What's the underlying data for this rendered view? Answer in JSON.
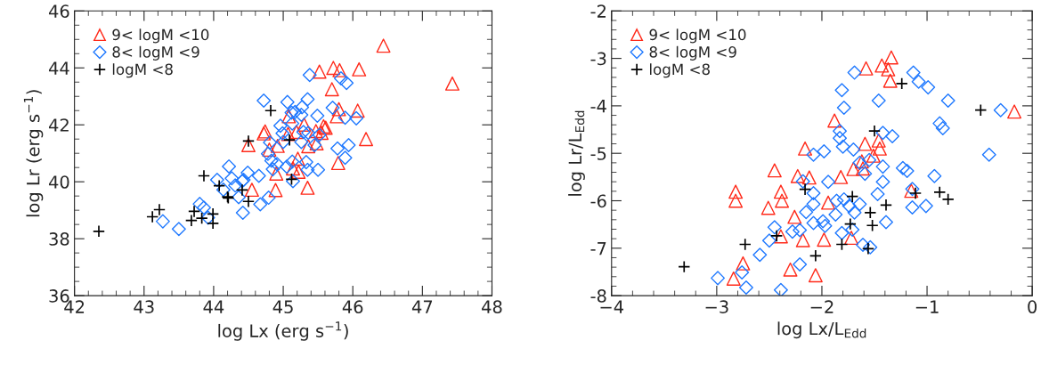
{
  "chart_data": [
    {
      "type": "scatter",
      "xlabel": "log Lx (erg s$^{−1}$)",
      "ylabel": "log Lr (erg s$^{−1}$)",
      "xlim": [
        42,
        48
      ],
      "ylim": [
        36,
        46
      ],
      "xticks": [
        42,
        43,
        44,
        45,
        46,
        47,
        48
      ],
      "yticks": [
        36,
        38,
        40,
        42,
        44,
        46
      ],
      "grid": false,
      "legend": "top left",
      "series": [
        {
          "name": "9< logM <10",
          "color": "#ff2a1a",
          "marker": "triangle",
          "x": [
            44.5,
            44.55,
            44.72,
            44.74,
            44.8,
            44.92,
            44.9,
            44.89,
            45.08,
            45.07,
            45.52,
            45.72,
            45.81,
            46.09,
            46.44,
            47.43,
            45.7,
            45.8,
            45.77,
            46.07,
            45.3,
            45.19,
            45.47,
            45.58,
            45.61,
            45.55,
            45.36,
            45.48,
            46.19,
            45.21,
            45.14,
            45.22,
            45.79,
            45.35
          ],
          "values": [
            41.29,
            39.72,
            41.7,
            41.77,
            41.13,
            41.26,
            40.29,
            39.71,
            42.3,
            41.68,
            43.87,
            44.0,
            43.92,
            43.95,
            44.78,
            43.45,
            43.25,
            42.55,
            42.3,
            42.5,
            42.01,
            41.75,
            41.78,
            41.95,
            41.9,
            41.72,
            41.25,
            41.35,
            41.5,
            40.81,
            40.47,
            40.35,
            40.66,
            39.79
          ]
        },
        {
          "name": "8< logM <9",
          "color": "#1e78ff",
          "marker": "diamond",
          "x": [
            43.27,
            43.5,
            43.8,
            43.86,
            43.92,
            44.05,
            44.14,
            44.22,
            44.26,
            44.31,
            44.36,
            44.41,
            44.43,
            44.42,
            44.49,
            44.65,
            44.67,
            44.79,
            44.72,
            44.78,
            44.81,
            44.83,
            44.91,
            44.85,
            44.96,
            45.0,
            44.99,
            45.06,
            45.12,
            45.05,
            45.14,
            45.38,
            45.83,
            45.91,
            45.35,
            45.27,
            45.17,
            45.26,
            45.49,
            45.71,
            45.89,
            46.05,
            45.13,
            45.29,
            45.36,
            45.52,
            45.26,
            45.45,
            45.78,
            45.94,
            45.89,
            45.13,
            45.33,
            45.35,
            45.5
          ],
          "values": [
            38.61,
            38.34,
            39.22,
            39.09,
            38.74,
            40.07,
            39.72,
            40.54,
            40.12,
            39.87,
            39.46,
            40.02,
            40.07,
            38.91,
            40.32,
            40.21,
            39.21,
            39.44,
            42.85,
            40.98,
            41.38,
            40.74,
            40.62,
            40.44,
            41.97,
            41.4,
            41.7,
            42.8,
            42.43,
            40.53,
            40.02,
            43.75,
            43.63,
            43.47,
            42.9,
            42.62,
            42.45,
            42.35,
            42.32,
            42.6,
            42.25,
            42.23,
            42.05,
            41.75,
            41.72,
            41.65,
            41.4,
            41.29,
            41.17,
            41.29,
            40.84,
            40.71,
            40.69,
            40.42,
            40.42
          ]
        },
        {
          "name": "logM <8",
          "color": "#000000",
          "marker": "cross",
          "x": [
            42.35,
            43.12,
            43.22,
            43.68,
            43.72,
            43.83,
            43.99,
            43.99,
            43.86,
            44.08,
            44.2,
            44.21,
            44.41,
            44.5,
            44.5,
            44.82,
            45.09,
            45.12
          ],
          "values": [
            38.26,
            38.77,
            39.02,
            38.64,
            38.96,
            38.72,
            38.87,
            38.54,
            40.21,
            39.86,
            39.47,
            39.43,
            39.71,
            39.31,
            41.43,
            42.5,
            41.47,
            40.09
          ]
        }
      ]
    },
    {
      "type": "scatter",
      "xlabel": "log Lx/L$_{Edd}$",
      "ylabel": "log Lr/L$_{Edd}$",
      "xlim": [
        -4,
        0
      ],
      "ylim": [
        -8,
        -2
      ],
      "xticks": [
        {
          "value": -4,
          "label": "−4"
        },
        {
          "value": -3,
          "label": "−3"
        },
        {
          "value": -2,
          "label": "−2"
        },
        {
          "value": -1,
          "label": "−1"
        },
        0
      ],
      "yticks": [
        -8,
        -7,
        -6,
        -5,
        -4,
        -3,
        -2
      ],
      "grid": false,
      "legend": "top left",
      "series": [
        {
          "name": "9< logM <10",
          "color": "#ff2a1a",
          "marker": "triangle",
          "x": [
            -2.82,
            -2.82,
            -2.75,
            -2.84,
            -2.45,
            -2.39,
            -2.38,
            -2.39,
            -2.51,
            -2.26,
            -2.18,
            -2.3,
            -2.23,
            -2.12,
            -2.16,
            -2.06,
            -1.58,
            -1.43,
            -1.37,
            -1.34,
            -1.35,
            -0.17,
            -1.88,
            -1.59,
            -1.46,
            -1.45,
            -1.51,
            -1.62,
            -1.7,
            -1.61,
            -1.82,
            -1.15,
            -1.94,
            -1.98,
            -1.72
          ],
          "values": [
            -5.81,
            -6.0,
            -7.32,
            -7.64,
            -5.36,
            -5.81,
            -6.0,
            -6.75,
            -6.15,
            -6.34,
            -6.83,
            -7.45,
            -5.48,
            -5.51,
            -4.9,
            -7.57,
            -3.21,
            -3.15,
            -3.23,
            -2.98,
            -3.47,
            -4.12,
            -4.31,
            -4.8,
            -4.73,
            -4.9,
            -5.05,
            -5.17,
            -5.33,
            -5.32,
            -5.5,
            -5.79,
            -6.04,
            -6.82,
            -6.78
          ]
        },
        {
          "name": "8< logM <9",
          "color": "#1e78ff",
          "marker": "diamond",
          "x": [
            -2.99,
            -2.76,
            -2.72,
            -2.59,
            -2.5,
            -2.45,
            -2.39,
            -2.28,
            -2.21,
            -2.21,
            -2.18,
            -2.15,
            -2.08,
            -2.08,
            -2.08,
            -2.08,
            -1.69,
            -1.81,
            -1.79,
            -1.46,
            -1.13,
            -1.08,
            -0.99,
            -0.8,
            -0.3,
            -0.41,
            -0.88,
            -0.85,
            -1.83,
            -1.83,
            -1.8,
            -1.7,
            -1.42,
            -1.33,
            -1.98,
            -1.64,
            -1.55,
            -1.59,
            -1.42,
            -1.23,
            -1.19,
            -0.93,
            -1.94,
            -1.42,
            -1.47,
            -1.14,
            -1.14,
            -1.01,
            -1.86,
            -1.79,
            -1.74,
            -1.64,
            -1.69,
            -1.87,
            -1.99,
            -1.97,
            -1.81,
            -1.71,
            -1.39,
            -1.61,
            -1.54
          ],
          "values": [
            -7.63,
            -7.51,
            -7.83,
            -7.14,
            -6.84,
            -6.56,
            -7.88,
            -6.65,
            -6.62,
            -7.34,
            -5.59,
            -6.24,
            -6.47,
            -5.84,
            -6.07,
            -5.03,
            -3.3,
            -3.67,
            -4.04,
            -3.89,
            -3.3,
            -3.49,
            -3.61,
            -3.89,
            -4.09,
            -5.03,
            -4.37,
            -4.47,
            -4.53,
            -4.68,
            -4.86,
            -4.92,
            -4.57,
            -4.64,
            -4.96,
            -5.2,
            -5.14,
            -5.43,
            -5.28,
            -5.31,
            -5.37,
            -5.48,
            -5.6,
            -5.6,
            -5.86,
            -5.75,
            -6.14,
            -6.11,
            -6.0,
            -5.97,
            -6.11,
            -6.07,
            -6.25,
            -6.29,
            -6.43,
            -6.53,
            -6.68,
            -6.61,
            -6.45,
            -6.93,
            -6.98
          ]
        },
        {
          "name": "logM <8",
          "color": "#000000",
          "marker": "cross",
          "x": [
            -3.31,
            -2.73,
            -2.43,
            -2.16,
            -2.06,
            -1.24,
            -0.49,
            -1.5,
            -1.71,
            -1.11,
            -0.88,
            -0.8,
            -1.39,
            -1.54,
            -1.52,
            -1.73,
            -1.81,
            -1.56
          ],
          "values": [
            -7.39,
            -6.92,
            -6.74,
            -5.76,
            -7.16,
            -3.53,
            -4.09,
            -4.53,
            -5.91,
            -5.84,
            -5.82,
            -5.97,
            -6.09,
            -6.25,
            -6.52,
            -6.49,
            -6.92,
            -7.01
          ]
        }
      ]
    }
  ]
}
